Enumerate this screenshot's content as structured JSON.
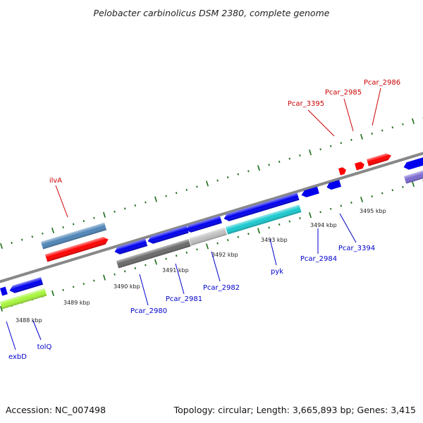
{
  "header": {
    "title": "Pelobacter carbinolicus DSM 2380, complete genome"
  },
  "footer": {
    "accession": "Accession: NC_007498",
    "summary": "Topology: circular; Length: 3,665,893 bp; Genes: 3,415"
  },
  "position_labels": [
    "3488 kbp",
    "3489 kbp",
    "3490 kbp",
    "3491 kbp",
    "3492 kbp",
    "3493 kbp",
    "3494 kbp",
    "3495 kbp"
  ],
  "gene_labels": {
    "plus": [
      "ilvA",
      "Pcar_3395",
      "Pcar_2985",
      "Pcar_2986"
    ],
    "minus": [
      "exbD",
      "tolQ",
      "Pcar_2980",
      "Pcar_2981",
      "Pcar_2982",
      "pyk",
      "Pcar_2984",
      "Pcar_3394"
    ]
  },
  "colors": {
    "plus_strand_label": "#cc0000",
    "minus_strand_label": "#0000cc",
    "plus_gene": "#ff0000",
    "minus_gene": "#0000ee",
    "steel_blue_gene": "#4f86b8",
    "gray_gene": "#6a6a6a",
    "light_gray_gene": "#c0c0c0",
    "cyan_gene": "#19c9cf",
    "lime_gene": "#a6f53a",
    "violet_gene": "#7a6ad0",
    "backbone": "#888888",
    "tick_marks": "#1a6e1a"
  }
}
